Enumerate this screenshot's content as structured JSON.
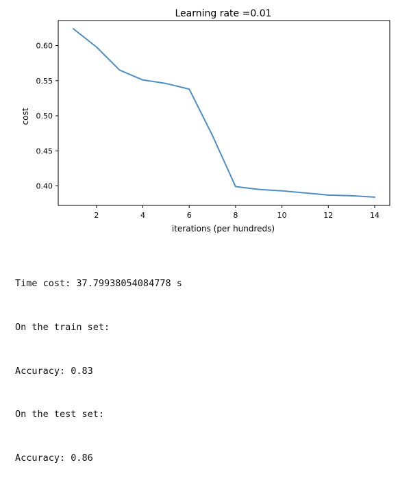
{
  "chart_data": {
    "type": "line",
    "title": "Learning rate =0.01",
    "xlabel": "iterations (per hundreds)",
    "ylabel": "cost",
    "x": [
      1,
      2,
      3,
      4,
      5,
      6,
      7,
      8,
      9,
      10,
      11,
      12,
      13,
      14
    ],
    "series": [
      {
        "values": [
          0.624,
          0.598,
          0.565,
          0.551,
          0.546,
          0.538,
          0.472,
          0.399,
          0.395,
          0.393,
          0.39,
          0.387,
          0.386,
          0.384
        ],
        "color": "#4c8ec6"
      }
    ],
    "xlim": [
      0.35,
      14.65
    ],
    "ylim": [
      0.3722,
      0.6357
    ],
    "xticks": [
      2,
      4,
      6,
      8,
      10,
      12,
      14
    ],
    "yticks": [
      0.4,
      0.45,
      0.5,
      0.55,
      0.6
    ],
    "xtick_labels": [
      "2",
      "4",
      "6",
      "8",
      "10",
      "12",
      "14"
    ],
    "ytick_labels": [
      "0.40",
      "0.45",
      "0.50",
      "0.55",
      "0.60"
    ],
    "grid": false,
    "legend": "none"
  },
  "output": {
    "lines": [
      "Time cost: 37.79938054084778 s",
      "On the train set:",
      "Accuracy: 0.83",
      "On the test set:",
      "Accuracy: 0.86"
    ]
  }
}
